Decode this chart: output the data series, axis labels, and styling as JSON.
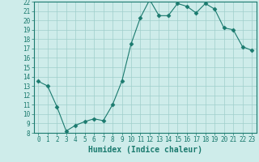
{
  "x": [
    0,
    1,
    2,
    3,
    4,
    5,
    6,
    7,
    8,
    9,
    10,
    11,
    12,
    13,
    14,
    15,
    16,
    17,
    18,
    19,
    20,
    21,
    22,
    23
  ],
  "y": [
    13.5,
    13.0,
    10.8,
    8.2,
    8.8,
    9.2,
    9.5,
    9.3,
    11.0,
    13.5,
    17.5,
    20.3,
    22.2,
    20.5,
    20.5,
    21.8,
    21.5,
    20.8,
    21.8,
    21.2,
    19.2,
    19.0,
    17.2,
    16.8
  ],
  "line_color": "#1a7a6e",
  "marker": "D",
  "marker_size": 2.5,
  "bg_color": "#ceecea",
  "grid_color": "#9fcfcb",
  "xlabel": "Humidex (Indice chaleur)",
  "ylim": [
    8,
    22
  ],
  "xlim": [
    -0.5,
    23.5
  ],
  "yticks": [
    8,
    9,
    10,
    11,
    12,
    13,
    14,
    15,
    16,
    17,
    18,
    19,
    20,
    21,
    22
  ],
  "xticks": [
    0,
    1,
    2,
    3,
    4,
    5,
    6,
    7,
    8,
    9,
    10,
    11,
    12,
    13,
    14,
    15,
    16,
    17,
    18,
    19,
    20,
    21,
    22,
    23
  ],
  "tick_color": "#1a7a6e",
  "label_fontsize": 7,
  "tick_fontsize": 5.5
}
